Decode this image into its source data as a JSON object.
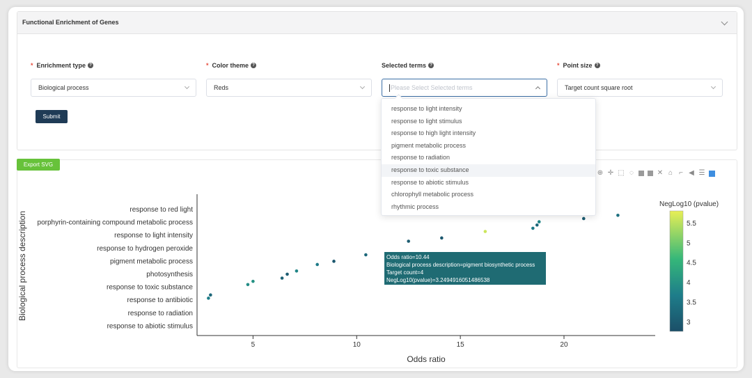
{
  "panel": {
    "title": "Functional Enrichment of Genes"
  },
  "form": {
    "enrichment_type": {
      "label": "Enrichment type",
      "value": "Biological process"
    },
    "color_theme": {
      "label": "Color theme",
      "value": "Reds"
    },
    "selected_terms": {
      "label": "Selected terms",
      "placeholder": "Please Select Selected terms"
    },
    "point_size": {
      "label": "Point size",
      "value": "Target count square root"
    },
    "submit_label": "Submit"
  },
  "dropdown_options": [
    "response to light intensity",
    "response to light stimulus",
    "response to high light intensity",
    "pigment metabolic process",
    "response to radiation",
    "response to toxic substance",
    "response to abiotic stimulus",
    "chlorophyll metabolic process",
    "rhythmic process"
  ],
  "export_label": "Export SVG",
  "tooltip": {
    "line1": "Odds ratio=10.44",
    "line2": "Biological process description=pigment biosynthetic process",
    "line3": "Target count=4",
    "line4": "NegLog10(pvalue)=3.2494916051486538"
  },
  "colors": {
    "accent": "#1f3b56",
    "export": "#67c23a",
    "tooltip": "#1f6b73",
    "required": "#e74c3c"
  },
  "chart_data": {
    "type": "scatter",
    "xlabel": "Odds ratio",
    "ylabel": "Biological process description",
    "xlim": [
      2.3,
      24.4
    ],
    "xticks": [
      5,
      10,
      15,
      20
    ],
    "y_tick_labels": [
      "response to red light",
      "porphyrin-containing compound metabolic process",
      "response to light intensity",
      "response to hydrogen peroxide",
      "pigment metabolic process",
      "photosynthesis",
      "response to toxic substance",
      "response to antibiotic",
      "response to radiation",
      "response to abiotic stimulus"
    ],
    "legend": {
      "title": "NegLog10 (pvalue)",
      "ticks": [
        5.5,
        5,
        4.5,
        4,
        3.5,
        3
      ],
      "range": [
        2.75,
        5.8
      ]
    },
    "points": [
      {
        "x": 2.85,
        "rank": 18.8,
        "c": 3.7
      },
      {
        "x": 2.95,
        "rank": 18.3,
        "c": 3.2
      },
      {
        "x": 4.75,
        "rank": 16.7,
        "c": 3.9
      },
      {
        "x": 5.0,
        "rank": 16.2,
        "c": 4.0
      },
      {
        "x": 6.4,
        "rank": 15.7,
        "c": 3.1
      },
      {
        "x": 6.65,
        "rank": 15.1,
        "c": 3.0
      },
      {
        "x": 7.1,
        "rank": 14.6,
        "c": 3.8
      },
      {
        "x": 8.1,
        "rank": 13.6,
        "c": 3.6
      },
      {
        "x": 8.9,
        "rank": 13.1,
        "c": 2.9
      },
      {
        "x": 10.44,
        "rank": 12.1,
        "c": 3.25
      },
      {
        "x": 12.5,
        "rank": 10.0,
        "c": 3.0
      },
      {
        "x": 14.1,
        "rank": 9.5,
        "c": 2.9
      },
      {
        "x": 16.2,
        "rank": 8.5,
        "c": 5.6
      },
      {
        "x": 18.5,
        "rank": 8.0,
        "c": 3.6
      },
      {
        "x": 18.7,
        "rank": 7.5,
        "c": 3.2
      },
      {
        "x": 18.8,
        "rank": 7.0,
        "c": 3.8
      },
      {
        "x": 20.95,
        "rank": 6.5,
        "c": 3.0
      },
      {
        "x": 22.6,
        "rank": 6.0,
        "c": 3.4
      }
    ]
  }
}
